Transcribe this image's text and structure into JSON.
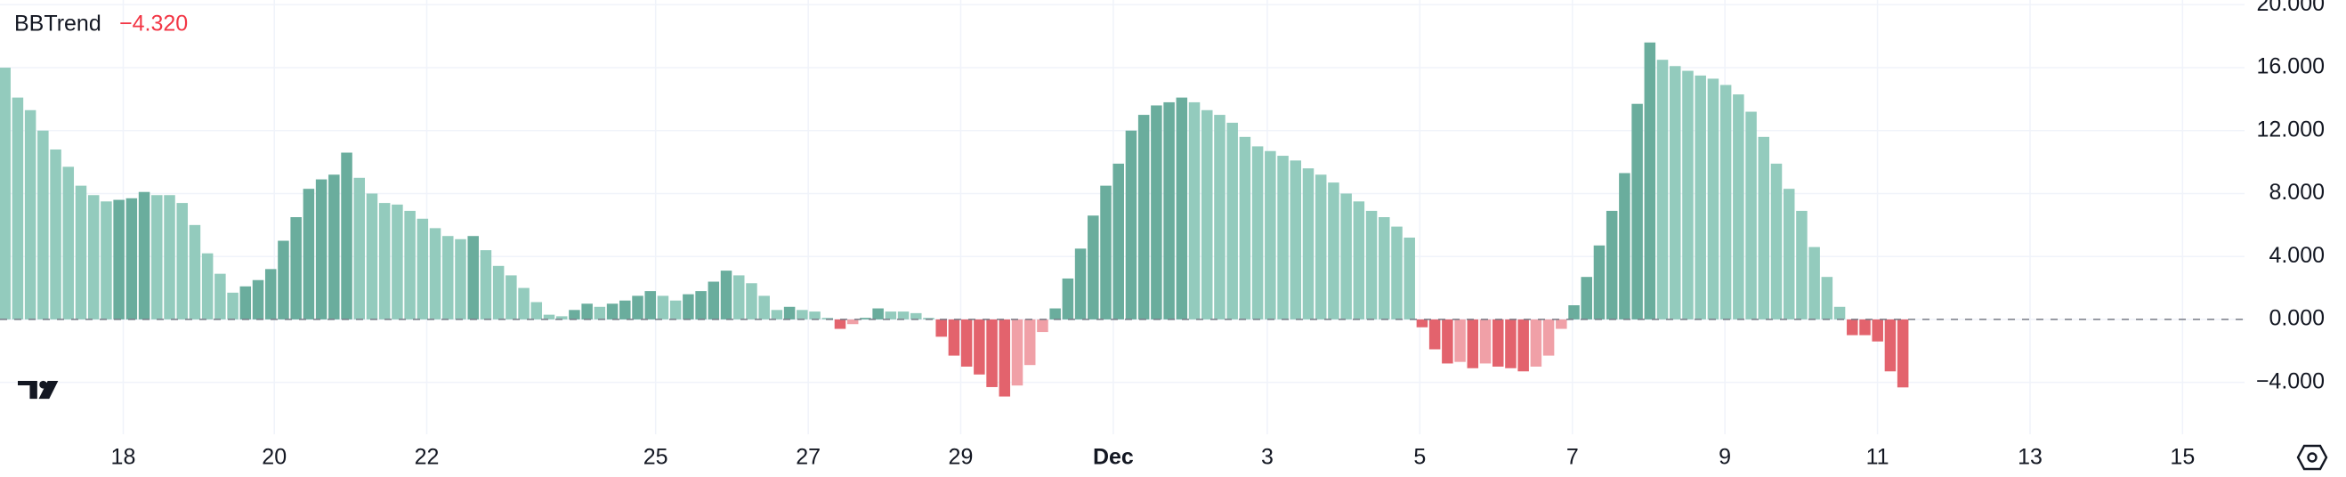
{
  "chart_data": {
    "type": "bar",
    "title": "BBTrend",
    "last_value_label": "−4.320",
    "values": [
      16,
      14.1,
      13.3,
      12.0,
      10.8,
      9.7,
      8.5,
      7.9,
      7.5,
      7.6,
      7.7,
      8.1,
      7.9,
      7.9,
      7.4,
      6.0,
      4.2,
      2.9,
      1.7,
      2.1,
      2.5,
      3.2,
      5.0,
      6.5,
      8.3,
      8.9,
      9.2,
      10.6,
      9.0,
      8.0,
      7.4,
      7.3,
      6.9,
      6.4,
      5.8,
      5.3,
      5.1,
      5.3,
      4.4,
      3.4,
      2.8,
      2.0,
      1.1,
      0.3,
      0.2,
      0.6,
      1.0,
      0.8,
      1.0,
      1.2,
      1.5,
      1.8,
      1.5,
      1.2,
      1.6,
      1.8,
      2.4,
      3.1,
      2.8,
      2.3,
      1.5,
      0.6,
      0.8,
      0.6,
      0.5,
      0.1,
      -0.6,
      -0.3,
      0.1,
      0.7,
      0.5,
      0.5,
      0.4,
      0.1,
      -1.1,
      -2.3,
      -3.0,
      -3.5,
      -4.3,
      -4.9,
      -4.2,
      -2.9,
      -0.8,
      0.7,
      2.6,
      4.5,
      6.6,
      8.5,
      9.9,
      12.0,
      13.0,
      13.6,
      13.8,
      14.1,
      13.8,
      13.3,
      13.0,
      12.5,
      11.6,
      11.0,
      10.7,
      10.4,
      10.1,
      9.6,
      9.2,
      8.7,
      8.0,
      7.5,
      6.9,
      6.5,
      5.9,
      5.2,
      -0.5,
      -1.9,
      -2.8,
      -2.7,
      -3.1,
      -2.8,
      -3.0,
      -3.1,
      -3.3,
      -3.0,
      -2.3,
      -0.6,
      0.9,
      2.7,
      4.7,
      6.9,
      9.3,
      13.7,
      17.6,
      16.5,
      16.1,
      15.8,
      15.5,
      15.3,
      14.9,
      14.3,
      13.2,
      11.6,
      9.9,
      8.3,
      6.9,
      4.6,
      2.7,
      0.8,
      -1.0,
      -1.0,
      -1.4,
      -3.3,
      -4.32
    ],
    "colors": [
      "#6aad9d",
      "#93cbbd",
      "#e3636d",
      "#f0a0a7"
    ],
    "hline": 0,
    "xlim": [
      -0.4,
      177
    ],
    "xticks": [
      {
        "value": 9.34,
        "label": "18"
      },
      {
        "value": 21.28,
        "label": "20"
      },
      {
        "value": 33.33,
        "label": "22"
      },
      {
        "value": 51.42,
        "label": "25"
      },
      {
        "value": 63.48,
        "label": "27"
      },
      {
        "value": 75.53,
        "label": "29"
      },
      {
        "value": 87.59,
        "label": "Dec"
      },
      {
        "value": 99.76,
        "label": "3"
      },
      {
        "value": 111.82,
        "label": "5"
      },
      {
        "value": 123.88,
        "label": "7"
      },
      {
        "value": 135.93,
        "label": "9"
      },
      {
        "value": 147.99,
        "label": "11"
      },
      {
        "value": 160.05,
        "label": "13"
      },
      {
        "value": 172.1,
        "label": "15"
      }
    ],
    "ylim": [
      -7.3,
      20.3
    ],
    "yticks": [
      {
        "value": 20,
        "label": "20.000"
      },
      {
        "value": 16,
        "label": "16.000"
      },
      {
        "value": 12,
        "label": "12.000"
      },
      {
        "value": 8,
        "label": "8.000"
      },
      {
        "value": 4,
        "label": "4.000"
      },
      {
        "value": 0,
        "label": "0.000"
      },
      {
        "value": -4,
        "label": "−4.000"
      }
    ],
    "grid": true
  }
}
